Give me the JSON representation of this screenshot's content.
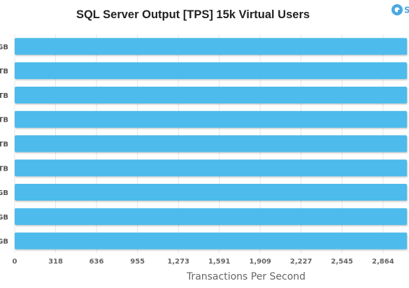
{
  "chart_data": {
    "type": "bar",
    "orientation": "horizontal",
    "title": "SQL Server Output [TPS] 15k Virtual Users",
    "xlabel": "Transactions Per Second",
    "ylabel": "",
    "category_labels_visible": [
      "GB",
      "TB",
      "TB",
      "TB",
      "TB",
      "TB",
      "GB",
      "GB",
      "GB"
    ],
    "series": [
      {
        "values": [
          3050,
          3050,
          3050,
          3050,
          3050,
          3050,
          3050,
          3050,
          3050
        ],
        "color": "#4dbbeb"
      }
    ],
    "xticks": [
      "0",
      "318",
      "636",
      "955",
      "1,273",
      "1,591",
      "1,909",
      "2,227",
      "2,545",
      "2,864"
    ],
    "xtick_values": [
      0,
      318,
      636,
      955,
      1273,
      1591,
      1909,
      2227,
      2545,
      2864
    ],
    "xlim": [
      0,
      3000
    ],
    "grid": "vertical",
    "legend": "none"
  },
  "colors": {
    "bar": "#4dbbeb",
    "bar_shadow": "#d8dbe0",
    "grid": "#e6e6e6",
    "logo": "#4aa8e0"
  }
}
